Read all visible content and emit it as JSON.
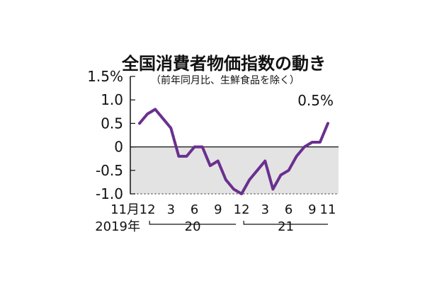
{
  "chart_data": {
    "type": "line",
    "title": "全国消費者物価指数の動き",
    "subtitle": "（前年同月比、生鮮食品を除く）",
    "xlabel": "",
    "ylabel": "",
    "ylim": [
      -1.0,
      1.5
    ],
    "y_tick_labels": [
      "1.5%",
      "1.0",
      "0.5",
      "0",
      "-0.5",
      "-1.0"
    ],
    "x_tick_labels": [
      "11月",
      "12",
      "3",
      "6",
      "9",
      "12",
      "3",
      "6",
      "9",
      "11"
    ],
    "year_labels": [
      "2019年",
      "20",
      "21"
    ],
    "shading": "area below 0 shaded gray",
    "grid": false,
    "annotation": "0.5%",
    "colors": {
      "line": "#6a2f8f",
      "negative_area": "#e3e3e3",
      "axis": "#111111"
    },
    "series": [
      {
        "x": [
          "2019-11",
          "2019-12",
          "2020-01",
          "2020-02",
          "2020-03",
          "2020-04",
          "2020-05",
          "2020-06",
          "2020-07",
          "2020-08",
          "2020-09",
          "2020-10",
          "2020-11",
          "2020-12",
          "2021-01",
          "2021-02",
          "2021-03",
          "2021-04",
          "2021-05",
          "2021-06",
          "2021-07",
          "2021-08",
          "2021-09",
          "2021-10",
          "2021-11"
        ],
        "values": [
          0.5,
          0.7,
          0.8,
          0.6,
          0.4,
          -0.2,
          -0.2,
          0.0,
          0.0,
          -0.4,
          -0.3,
          -0.7,
          -0.9,
          -1.0,
          -0.7,
          -0.5,
          -0.3,
          -0.9,
          -0.6,
          -0.5,
          -0.2,
          0.0,
          0.1,
          0.1,
          0.5
        ]
      }
    ]
  }
}
